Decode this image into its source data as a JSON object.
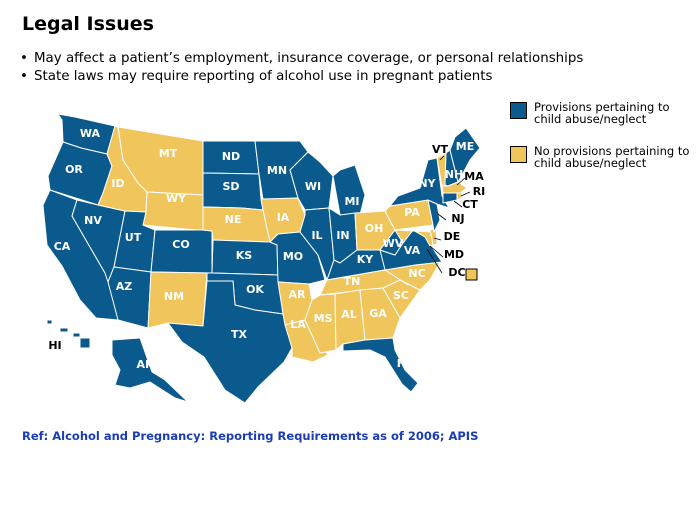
{
  "slide": {
    "title": "Legal Issues",
    "bullets": [
      "May affect a patient’s employment, insurance coverage, or personal relationships",
      "State laws may require reporting of alcohol use in pregnant patients"
    ],
    "reference": "Ref: Alcohol and Pregnancy: Reporting Requirements as of 2006; APIS"
  },
  "legend": {
    "provisions": {
      "label": "Provisions pertaining to child abuse/neglect",
      "color": "#0b5a8e"
    },
    "no_provisions": {
      "label": "No provisions pertaining to child abuse/neglect",
      "color": "#f0c55c"
    }
  },
  "map": {
    "states": {
      "WA": "provisions",
      "OR": "provisions",
      "CA": "provisions",
      "NV": "provisions",
      "ID": "no_provisions",
      "MT": "no_provisions",
      "WY": "no_provisions",
      "UT": "provisions",
      "AZ": "provisions",
      "CO": "provisions",
      "NM": "no_provisions",
      "ND": "provisions",
      "SD": "provisions",
      "NE": "no_provisions",
      "KS": "provisions",
      "OK": "provisions",
      "TX": "provisions",
      "MN": "provisions",
      "IA": "no_provisions",
      "MO": "provisions",
      "AR": "no_provisions",
      "LA": "no_provisions",
      "WI": "provisions",
      "IL": "provisions",
      "MI": "provisions",
      "IN": "provisions",
      "OH": "no_provisions",
      "KY": "provisions",
      "TN": "no_provisions",
      "MS": "no_provisions",
      "AL": "no_provisions",
      "GA": "no_provisions",
      "FL": "provisions",
      "SC": "no_provisions",
      "NC": "no_provisions",
      "VA": "provisions",
      "WV": "provisions",
      "PA": "no_provisions",
      "NY": "provisions",
      "VT": "no_provisions",
      "NH": "provisions",
      "ME": "provisions",
      "MA": "no_provisions",
      "RI": "no_provisions",
      "CT": "provisions",
      "NJ": "provisions",
      "DE": "no_provisions",
      "MD": "no_provisions",
      "DC": "no_provisions",
      "AK": "provisions",
      "HI": "provisions"
    }
  }
}
